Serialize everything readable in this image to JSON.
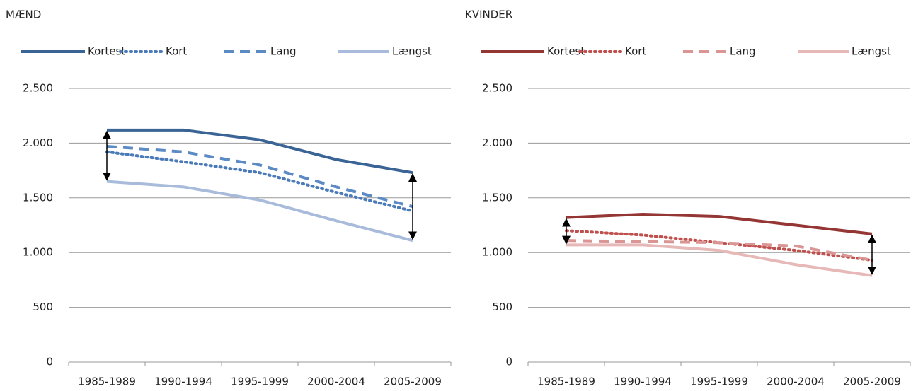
{
  "chart_data": [
    {
      "type": "line",
      "title": "MÆND",
      "categories": [
        "1985-1989",
        "1990-1994",
        "1995-1999",
        "2000-2004",
        "2005-2009"
      ],
      "series": [
        {
          "name": "Kortest",
          "color": "#3b6496",
          "style": "solid",
          "values": [
            2120,
            2120,
            2030,
            1850,
            1730
          ]
        },
        {
          "name": "Kort",
          "color": "#4a7ab8",
          "style": "dot",
          "values": [
            1920,
            1830,
            1730,
            1550,
            1380
          ]
        },
        {
          "name": "Lang",
          "color": "#5b8ac4",
          "style": "dash",
          "values": [
            1970,
            1920,
            1800,
            1600,
            1420
          ]
        },
        {
          "name": "Længst",
          "color": "#a8bbdb",
          "style": "solid",
          "values": [
            1650,
            1600,
            1480,
            1290,
            1110
          ]
        }
      ],
      "ylim": [
        0,
        2500
      ],
      "yticks": [
        0,
        500,
        {
          "value": 1000,
          "label": "1.000"
        },
        {
          "value": 1500,
          "label": "1.500"
        },
        {
          "value": 2000,
          "label": "2.000"
        },
        {
          "value": 2500,
          "label": "2.500"
        }
      ],
      "grid": true,
      "legend": "top"
    },
    {
      "type": "line",
      "title": "KVINDER",
      "categories": [
        "1985-1989",
        "1990-1994",
        "1995-1999",
        "2000-2004",
        "2005-2009"
      ],
      "series": [
        {
          "name": "Kortest",
          "color": "#943634",
          "style": "solid",
          "values": [
            1320,
            1350,
            1330,
            1250,
            1170
          ]
        },
        {
          "name": "Kort",
          "color": "#c0504d",
          "style": "dot",
          "values": [
            1200,
            1160,
            1090,
            1020,
            930
          ]
        },
        {
          "name": "Lang",
          "color": "#d99694",
          "style": "dash",
          "values": [
            1110,
            1100,
            1090,
            1060,
            930
          ]
        },
        {
          "name": "Længst",
          "color": "#e6b9b8",
          "style": "solid",
          "values": [
            1070,
            1070,
            1020,
            890,
            790
          ]
        }
      ],
      "ylim": [
        0,
        2500
      ],
      "yticks": [
        0,
        500,
        {
          "value": 1000,
          "label": "1.000"
        },
        {
          "value": 1500,
          "label": "1.500"
        },
        {
          "value": 2000,
          "label": "2.000"
        },
        {
          "value": 2500,
          "label": "2.500"
        }
      ],
      "grid": true,
      "legend": "top"
    }
  ]
}
